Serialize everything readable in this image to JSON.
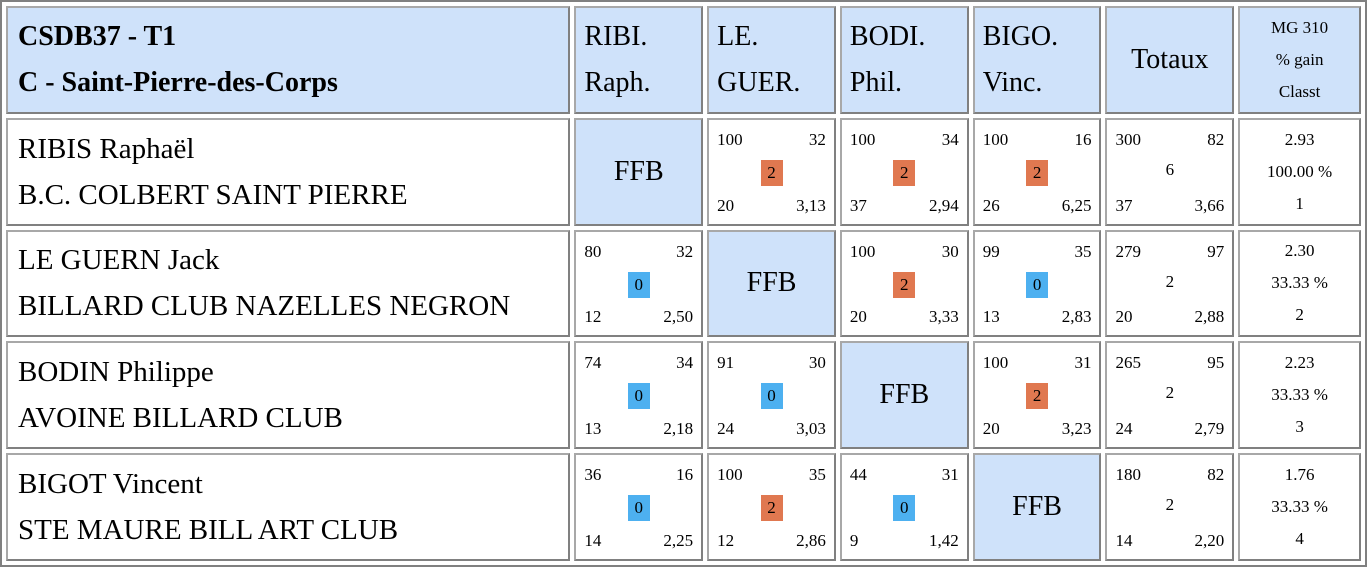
{
  "header": {
    "title_line1": "CSDB37 - T1",
    "title_line2": "C - Saint-Pierre-des-Corps",
    "columns": [
      {
        "line1": "RIBI.",
        "line2": "Raph."
      },
      {
        "line1": "LE.",
        "line2": "GUER."
      },
      {
        "line1": "BODI.",
        "line2": "Phil."
      },
      {
        "line1": "BIGO.",
        "line2": "Vinc."
      }
    ],
    "totals_label": "Totaux",
    "mg_line1": "MG 310",
    "mg_line2": "% gain",
    "mg_line3": "Classt"
  },
  "colors": {
    "header_bg": "#cfe2fa",
    "win_badge": "#e07850",
    "loss_badge": "#4db0f0"
  },
  "ffb_label": "FFB",
  "players": [
    {
      "name": "RIBIS Raphaël",
      "club": "B.C. COLBERT SAINT PIERRE",
      "matches": [
        null,
        {
          "points": "100",
          "serie": "32",
          "result": "2",
          "reprises": "20",
          "moyenne": "3,13"
        },
        {
          "points": "100",
          "serie": "34",
          "result": "2",
          "reprises": "37",
          "moyenne": "2,94"
        },
        {
          "points": "100",
          "serie": "16",
          "result": "2",
          "reprises": "26",
          "moyenne": "6,25"
        }
      ],
      "totals": {
        "points": "300",
        "serie": "82",
        "result": "6",
        "reprises": "37",
        "moyenne": "3,66"
      },
      "mg": {
        "value": "2.93",
        "percent": "100.00 %",
        "rank": "1"
      }
    },
    {
      "name": "LE GUERN Jack",
      "club": "BILLARD CLUB NAZELLES NEGRON",
      "matches": [
        {
          "points": "80",
          "serie": "32",
          "result": "0",
          "reprises": "12",
          "moyenne": "2,50"
        },
        null,
        {
          "points": "100",
          "serie": "30",
          "result": "2",
          "reprises": "20",
          "moyenne": "3,33"
        },
        {
          "points": "99",
          "serie": "35",
          "result": "0",
          "reprises": "13",
          "moyenne": "2,83"
        }
      ],
      "totals": {
        "points": "279",
        "serie": "97",
        "result": "2",
        "reprises": "20",
        "moyenne": "2,88"
      },
      "mg": {
        "value": "2.30",
        "percent": "33.33 %",
        "rank": "2"
      }
    },
    {
      "name": "BODIN Philippe",
      "club": "AVOINE BILLARD CLUB",
      "matches": [
        {
          "points": "74",
          "serie": "34",
          "result": "0",
          "reprises": "13",
          "moyenne": "2,18"
        },
        {
          "points": "91",
          "serie": "30",
          "result": "0",
          "reprises": "24",
          "moyenne": "3,03"
        },
        null,
        {
          "points": "100",
          "serie": "31",
          "result": "2",
          "reprises": "20",
          "moyenne": "3,23"
        }
      ],
      "totals": {
        "points": "265",
        "serie": "95",
        "result": "2",
        "reprises": "24",
        "moyenne": "2,79"
      },
      "mg": {
        "value": "2.23",
        "percent": "33.33 %",
        "rank": "3"
      }
    },
    {
      "name": "BIGOT Vincent",
      "club": "STE MAURE BILL ART CLUB",
      "matches": [
        {
          "points": "36",
          "serie": "16",
          "result": "0",
          "reprises": "14",
          "moyenne": "2,25"
        },
        {
          "points": "100",
          "serie": "35",
          "result": "2",
          "reprises": "12",
          "moyenne": "2,86"
        },
        {
          "points": "44",
          "serie": "31",
          "result": "0",
          "reprises": "9",
          "moyenne": "1,42"
        },
        null
      ],
      "totals": {
        "points": "180",
        "serie": "82",
        "result": "2",
        "reprises": "14",
        "moyenne": "2,20"
      },
      "mg": {
        "value": "1.76",
        "percent": "33.33 %",
        "rank": "4"
      }
    }
  ]
}
